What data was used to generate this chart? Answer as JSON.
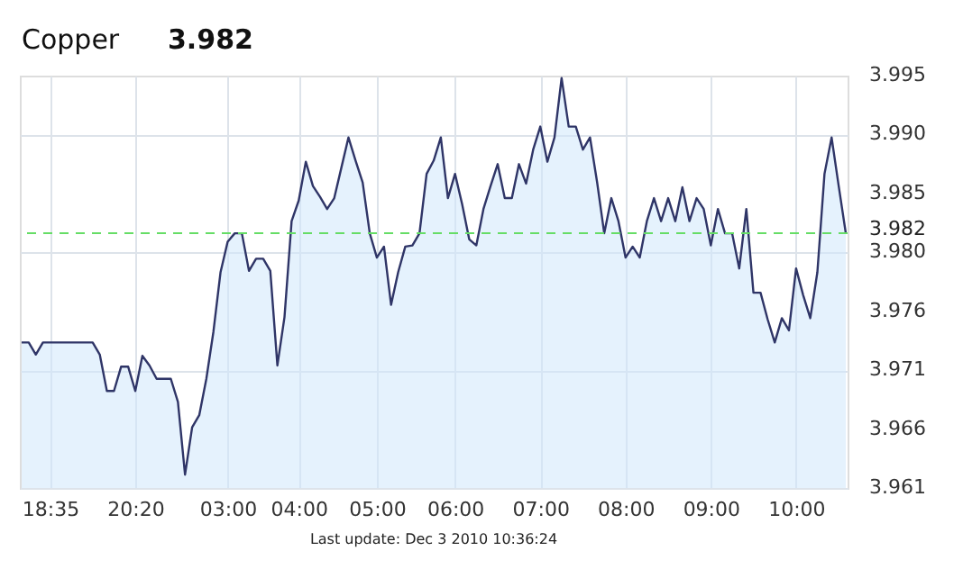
{
  "chart_data": {
    "type": "area",
    "title": "Copper",
    "subtitle": "3.982",
    "annotations": [
      "Last update: Dec 3 2010 10:36:24"
    ],
    "categories": [
      null,
      null,
      null,
      null,
      "18:35",
      null,
      null,
      null,
      null,
      null,
      null,
      null,
      null,
      null,
      null,
      null,
      "20:20",
      null,
      null,
      null,
      null,
      null,
      null,
      null,
      null,
      null,
      null,
      null,
      null,
      "03:00",
      null,
      null,
      null,
      null,
      null,
      null,
      null,
      null,
      null,
      "04:00",
      null,
      null,
      null,
      null,
      null,
      null,
      null,
      null,
      null,
      null,
      "05:00",
      null,
      null,
      null,
      null,
      null,
      null,
      null,
      null,
      null,
      null,
      "06:00",
      null,
      null,
      null,
      null,
      null,
      null,
      null,
      null,
      null,
      null,
      null,
      "07:00",
      null,
      null,
      null,
      null,
      null,
      null,
      null,
      null,
      null,
      null,
      null,
      "08:00",
      null,
      null,
      null,
      null,
      null,
      null,
      null,
      null,
      null,
      null,
      null,
      "09:00",
      null,
      null,
      null,
      null,
      null,
      null,
      null,
      null,
      null,
      null,
      null,
      "10:00",
      null,
      null,
      null,
      null,
      null,
      null,
      null
    ],
    "series": [
      {
        "color": "#2f3567",
        "values": [
          3.973,
          3.973,
          3.972,
          3.973,
          3.973,
          3.973,
          3.973,
          3.973,
          3.973,
          3.973,
          3.973,
          3.972,
          3.969,
          3.969,
          3.971,
          3.971,
          3.969,
          3.9719,
          3.9711,
          3.97,
          3.97,
          3.97,
          3.9681,
          3.9621,
          3.966,
          3.967,
          3.97,
          3.9739,
          3.9788,
          3.9813,
          3.982,
          3.982,
          3.9789,
          3.9799,
          3.9799,
          3.9789,
          3.9711,
          3.9751,
          3.983,
          3.9847,
          3.9879,
          3.9859,
          3.985,
          3.984,
          3.9849,
          3.9874,
          3.9899,
          3.988,
          3.9862,
          3.982,
          3.98,
          3.9809,
          3.9761,
          3.9788,
          3.9809,
          3.981,
          3.982,
          3.9869,
          3.988,
          3.9899,
          3.9849,
          3.9869,
          3.9844,
          3.9815,
          3.981,
          3.984,
          3.9859,
          3.9877,
          3.9849,
          3.9849,
          3.9877,
          3.9861,
          3.9889,
          3.9908,
          3.9879,
          3.9899,
          3.9948,
          3.9908,
          3.9908,
          3.9889,
          3.9899,
          3.9862,
          3.982,
          3.9849,
          3.983,
          3.98,
          3.9809,
          3.98,
          3.983,
          3.9849,
          3.983,
          3.9849,
          3.983,
          3.9858,
          3.983,
          3.9849,
          3.984,
          3.981,
          3.984,
          3.982,
          3.982,
          3.9791,
          3.984,
          3.9771,
          3.9771,
          3.9749,
          3.973,
          3.975,
          3.974,
          3.9791,
          3.9769,
          3.975,
          3.9788,
          3.9869,
          3.9899,
          3.9859,
          3.982
        ]
      }
    ],
    "ylim": [
      3.961,
      3.995
    ],
    "yticks": [
      3.961,
      {
        "value": 3.96586,
        "label": "3.966"
      },
      {
        "value": 3.97071,
        "label": "3.971"
      },
      {
        "value": 3.97557,
        "label": "3.976"
      },
      {
        "value": 3.98043,
        "label": "3.980"
      },
      {
        "value": 3.98529,
        "label": "3.985"
      },
      {
        "value": 3.99014,
        "label": "3.990"
      },
      3.995
    ],
    "ref_lines": [
      {
        "axis": "y",
        "value": 3.982,
        "label": "3.982",
        "color": "#66dd66",
        "line_style": "dashed"
      }
    ],
    "grid": true,
    "marker": "none",
    "line_style": "solid"
  }
}
